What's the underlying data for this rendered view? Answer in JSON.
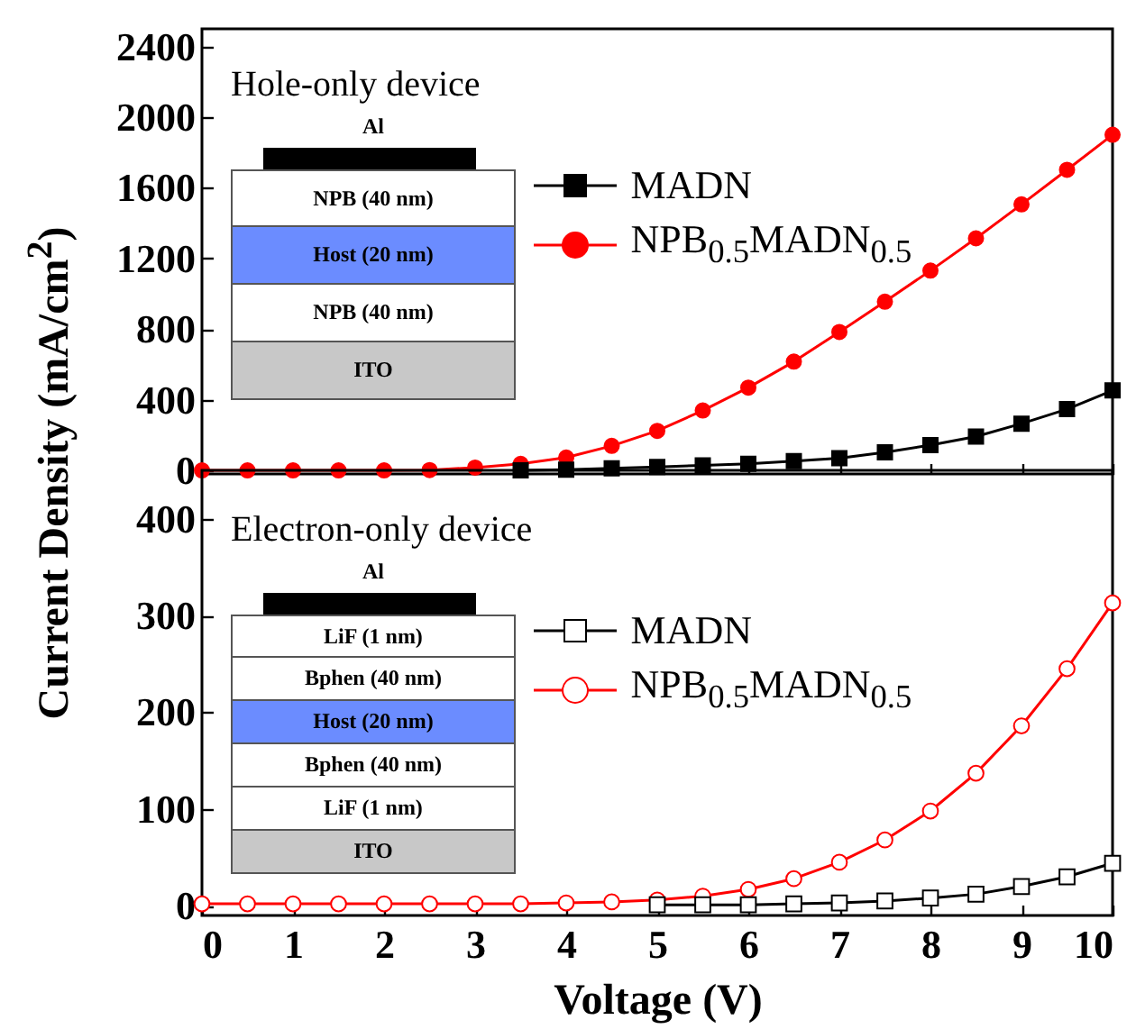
{
  "chart_data": [
    {
      "type": "line",
      "ylabel": "Current Density (mA/cm$^{2}$)",
      "annotations": [
        "Hole-only device",
        "Al",
        "NPB (40 nm)",
        "Host (20 nm)",
        "NPB (40 nm)",
        "ITO"
      ],
      "x": [
        0,
        0.5,
        1,
        1.5,
        2,
        2.5,
        3,
        3.5,
        4,
        4.5,
        5,
        5.5,
        6,
        6.5,
        7,
        7.5,
        8,
        8.5,
        9,
        9.5,
        10
      ],
      "xlim": [
        0,
        10
      ],
      "xticks": [
        0,
        1,
        2,
        3,
        4,
        5,
        6,
        7,
        8,
        9,
        10
      ],
      "ylim": [
        -20,
        2500
      ],
      "yticks": [
        0,
        400,
        800,
        1200,
        1600,
        2000,
        2400
      ],
      "tick_labels": "y",
      "legend": "top",
      "grid": false,
      "series": [
        {
          "name": "MADN",
          "color": "#000000",
          "marker": "square",
          "values": [
            null,
            null,
            null,
            null,
            null,
            null,
            null,
            1,
            4,
            12,
            20,
            29,
            37,
            53,
            69,
            102,
            143,
            192,
            265,
            347,
            453
          ]
        },
        {
          "name": "NPB$_{0.5}$MADN$_{0.5}$",
          "color": "#ff0000",
          "marker": "circle",
          "values": [
            0,
            0,
            0,
            0,
            0,
            2,
            16,
            37,
            73,
            139,
            224,
            339,
            469,
            616,
            784,
            955,
            1131,
            1314,
            1506,
            1702,
            1900
          ]
        }
      ]
    },
    {
      "type": "line",
      "xlabel": "Voltage (V)",
      "annotations": [
        "Electron-only device",
        "Al",
        "LiF (1 nm)",
        "Bphen (40 nm)",
        "Host (20 nm)",
        "Bphen (40 nm)",
        "LiF (1 nm)",
        "ITO"
      ],
      "x": [
        0,
        0.5,
        1,
        1.5,
        2,
        2.5,
        3,
        3.5,
        4,
        4.5,
        5,
        5.5,
        6,
        6.5,
        7,
        7.5,
        8,
        8.5,
        9,
        9.5,
        10
      ],
      "xlim": [
        0,
        10
      ],
      "xticks": [
        0,
        1,
        2,
        3,
        4,
        5,
        6,
        7,
        8,
        9,
        10
      ],
      "ylim": [
        -10,
        450
      ],
      "yticks": [
        0,
        100,
        200,
        300,
        400
      ],
      "legend": "top",
      "grid": false,
      "series": [
        {
          "name": "MADN",
          "color": "#000000",
          "marker": "square",
          "values": [
            null,
            null,
            null,
            null,
            null,
            null,
            null,
            null,
            null,
            null,
            1,
            1,
            1,
            2,
            3,
            5,
            8,
            12,
            20,
            30,
            44
          ]
        },
        {
          "name": "NPB$_{0.5}$MADN$_{0.5}$",
          "color": "#ff0000",
          "marker": "circle",
          "values": [
            2,
            2,
            2,
            2,
            2,
            2,
            2,
            2,
            3,
            4,
            6,
            10,
            17,
            28,
            45,
            68,
            98,
            137,
            186,
            245,
            313
          ]
        }
      ]
    }
  ]
}
